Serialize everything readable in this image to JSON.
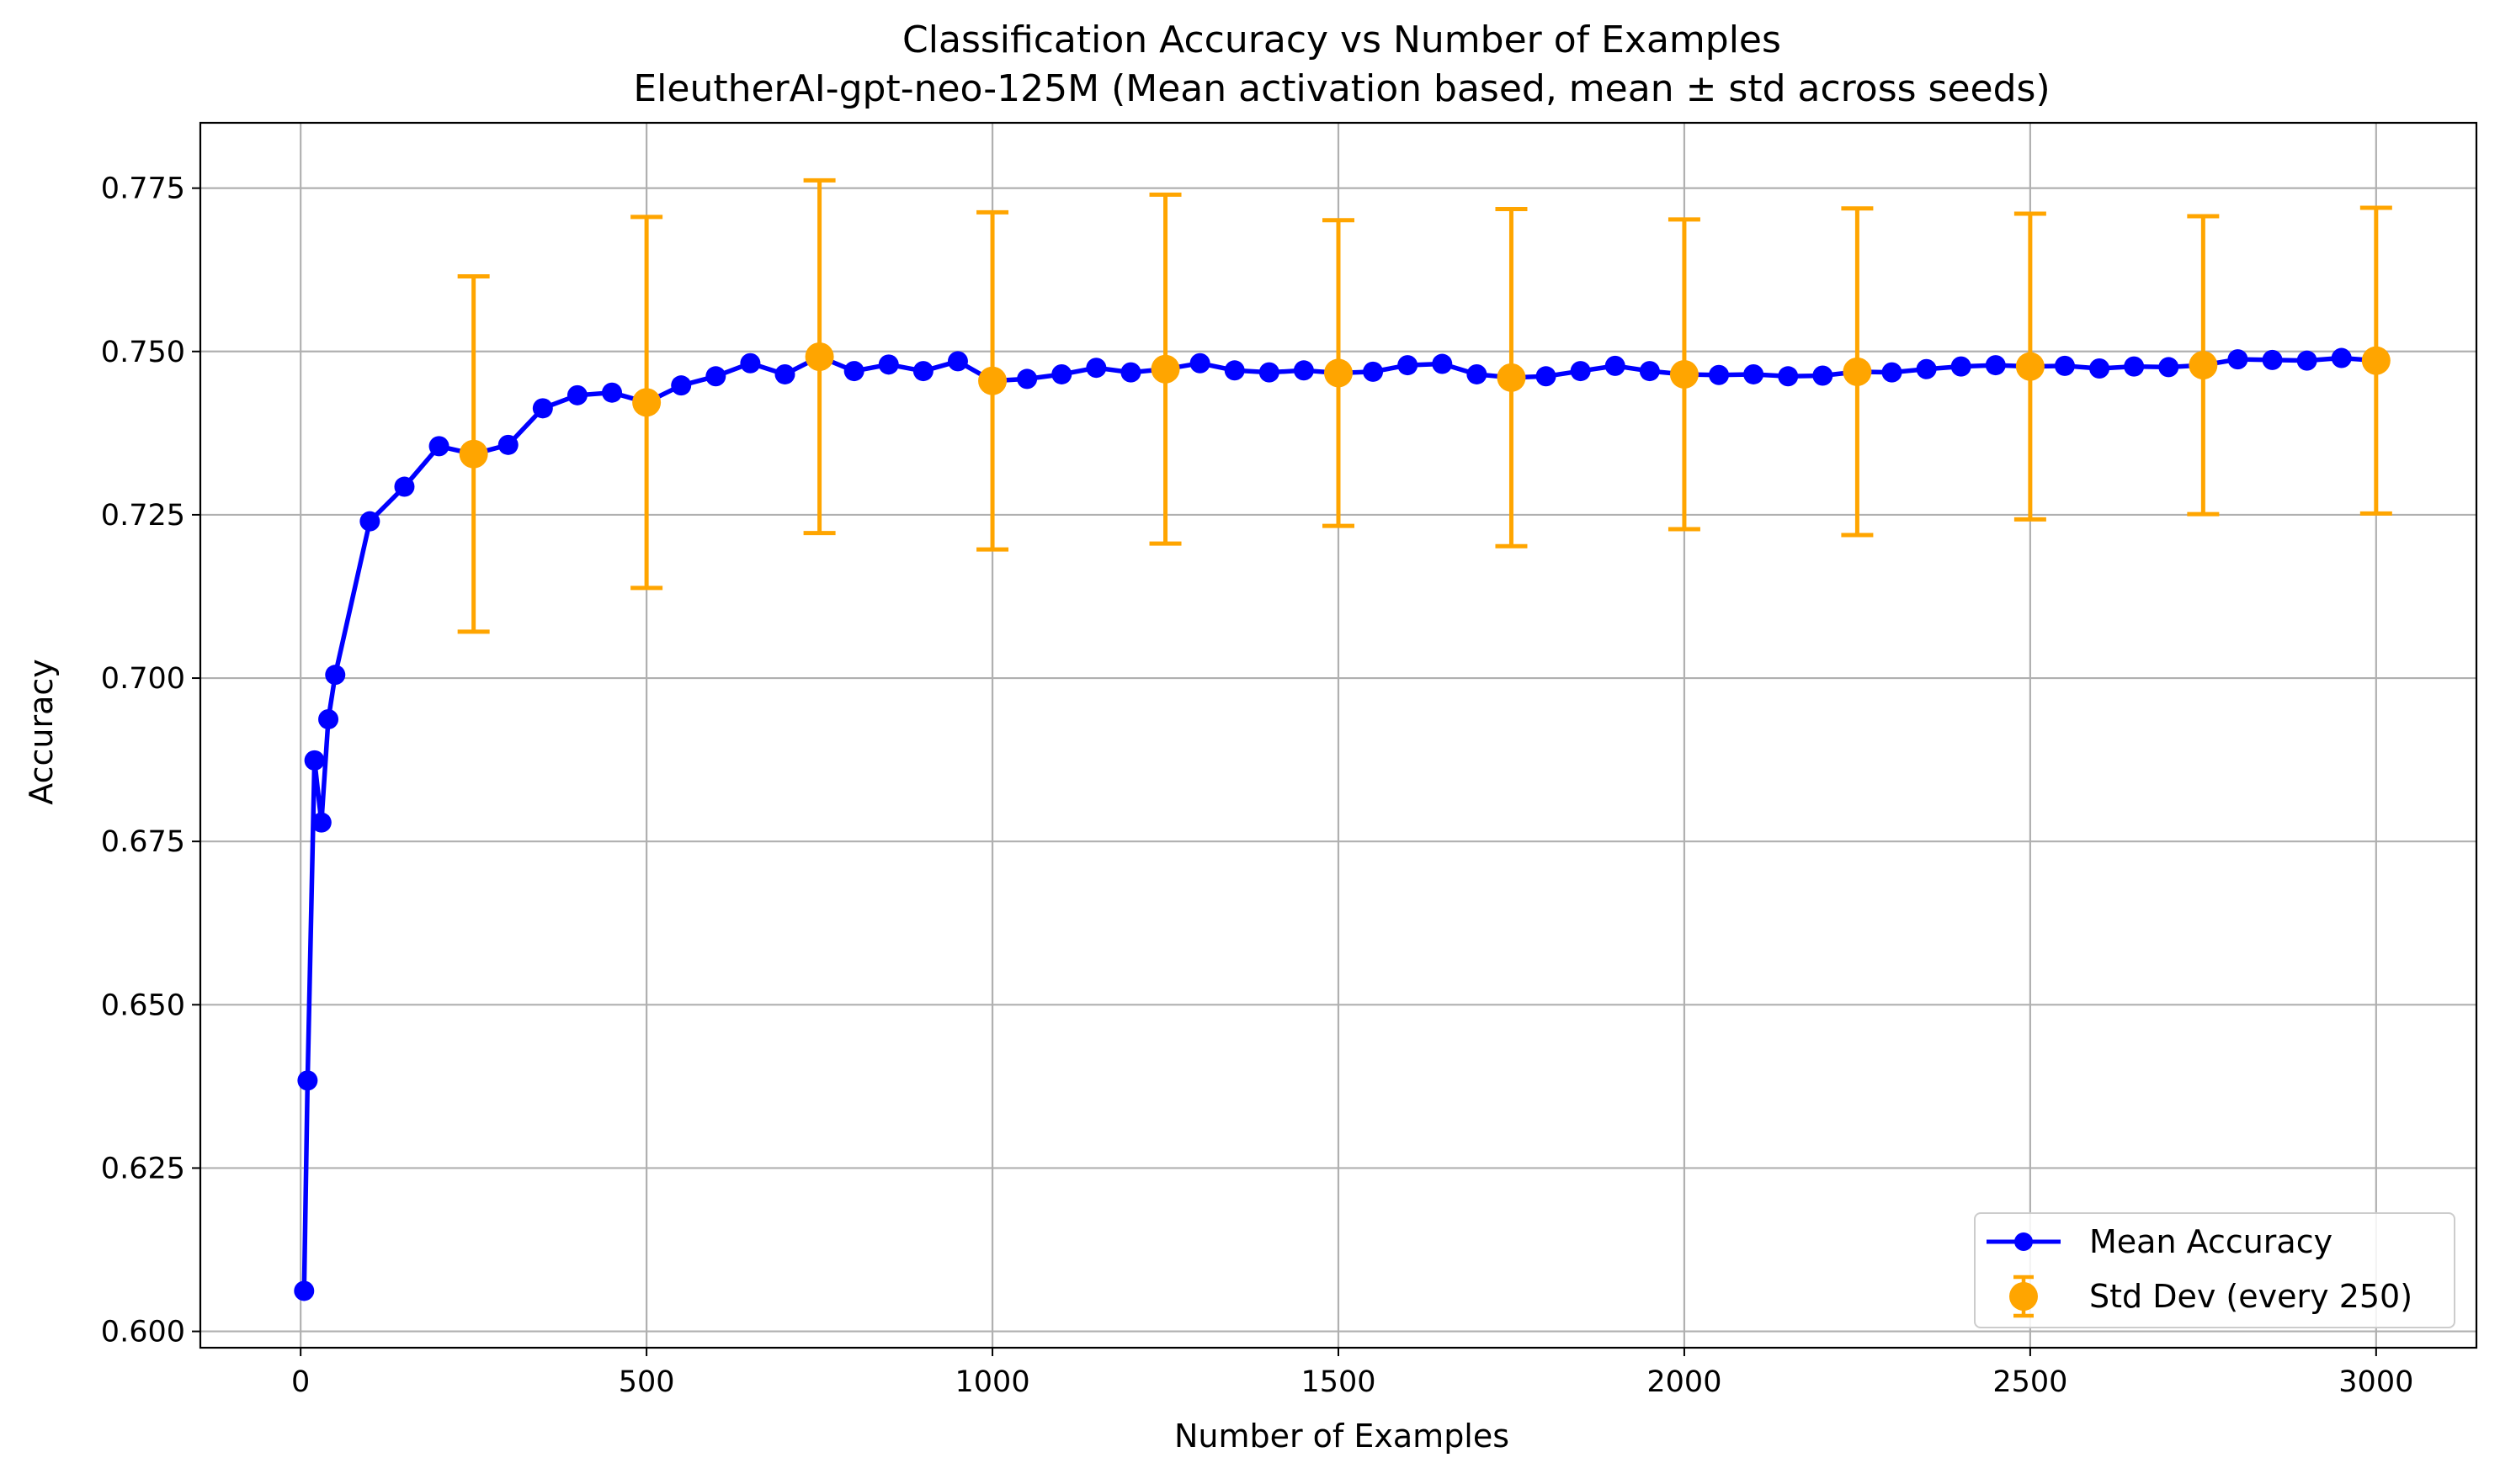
{
  "chart_data": {
    "type": "line",
    "title": "Classification Accuracy vs Number of Examples",
    "subtitle": "EleutherAI-gpt-neo-125M (Mean activation based, mean ± std across seeds)",
    "xlabel": "Number of Examples",
    "ylabel": "Accuracy",
    "xlim": [
      -145,
      3145
    ],
    "ylim": [
      0.5975,
      0.785
    ],
    "xticks": [
      0,
      500,
      1000,
      1500,
      2000,
      2500,
      3000
    ],
    "yticks": [
      0.6,
      0.625,
      0.65,
      0.675,
      0.7,
      0.725,
      0.75,
      0.775
    ],
    "xtick_labels": [
      "0",
      "500",
      "1000",
      "1500",
      "2000",
      "2500",
      "3000"
    ],
    "ytick_labels": [
      "0.600",
      "0.625",
      "0.650",
      "0.675",
      "0.700",
      "0.725",
      "0.750",
      "0.775"
    ],
    "grid": true,
    "legend_position": "bottom-right",
    "colors": {
      "mean": "#0000ff",
      "std": "#ffa500",
      "grid": "#b0b0b0"
    },
    "series": [
      {
        "name": "Mean Accuracy",
        "style": "line-marker",
        "x": [
          5,
          10,
          20,
          30,
          40,
          50,
          100,
          150,
          200,
          250,
          300,
          350,
          400,
          450,
          500,
          550,
          600,
          650,
          700,
          750,
          800,
          850,
          900,
          950,
          1000,
          1050,
          1100,
          1150,
          1200,
          1250,
          1300,
          1350,
          1400,
          1450,
          1500,
          1550,
          1600,
          1650,
          1700,
          1750,
          1800,
          1850,
          1900,
          1950,
          2000,
          2050,
          2100,
          2150,
          2200,
          2250,
          2300,
          2350,
          2400,
          2450,
          2500,
          2550,
          2600,
          2650,
          2700,
          2750,
          2800,
          2850,
          2900,
          2950,
          3000
        ],
        "y": [
          0.6062,
          0.6384,
          0.6874,
          0.6779,
          0.6937,
          0.7005,
          0.724,
          0.7293,
          0.7355,
          0.7343,
          0.7357,
          0.7413,
          0.7433,
          0.7437,
          0.7422,
          0.7448,
          0.7462,
          0.7482,
          0.7465,
          0.7492,
          0.747,
          0.748,
          0.747,
          0.7485,
          0.7455,
          0.7458,
          0.7465,
          0.7475,
          0.7468,
          0.7473,
          0.7482,
          0.7471,
          0.7468,
          0.7471,
          0.7467,
          0.7469,
          0.7479,
          0.7481,
          0.7465,
          0.746,
          0.7462,
          0.747,
          0.7478,
          0.747,
          0.7465,
          0.7464,
          0.7465,
          0.7462,
          0.7463,
          0.7469,
          0.7468,
          0.7473,
          0.7477,
          0.7479,
          0.7477,
          0.7478,
          0.7474,
          0.7477,
          0.7476,
          0.7479,
          0.7488,
          0.7487,
          0.7486,
          0.749,
          0.7486
        ]
      },
      {
        "name": "Std Dev (every 250)",
        "style": "errorbar",
        "x": [
          250,
          500,
          750,
          1000,
          1250,
          1500,
          1750,
          2000,
          2250,
          2500,
          2750,
          3000
        ],
        "y": [
          0.7343,
          0.7422,
          0.7492,
          0.7455,
          0.7473,
          0.7467,
          0.746,
          0.7465,
          0.7469,
          0.7477,
          0.7479,
          0.7486
        ],
        "err": [
          0.0272,
          0.0284,
          0.027,
          0.0258,
          0.0267,
          0.0234,
          0.0258,
          0.0237,
          0.025,
          0.0234,
          0.0228,
          0.0234
        ]
      }
    ]
  }
}
